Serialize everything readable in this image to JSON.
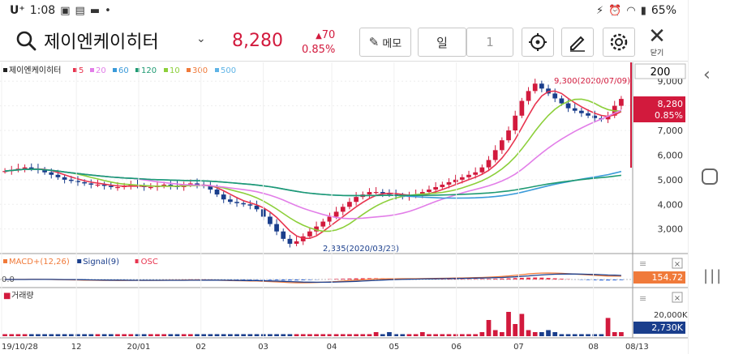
{
  "status": {
    "carrier": "U⁺",
    "time": "1:08",
    "battery": "65%"
  },
  "header": {
    "stock_name": "제이엔케이히터",
    "price": "8,280",
    "change_amount": "70",
    "change_pct": "0.85%",
    "memo_label": "메모",
    "period_label": "일",
    "period_value": "1",
    "close_label": "닫기"
  },
  "colors": {
    "up": "#d21a3d",
    "down": "#1a3e8c",
    "ma5": "#e8344f",
    "ma20": "#e27ee8",
    "ma60": "#3a9ad9",
    "ma120": "#1e9a72",
    "ma10": "#8ccf3a",
    "ma300": "#f07a3a",
    "ma500": "#5fb4e6"
  },
  "chart_data": {
    "type": "candlestick",
    "legend": [
      {
        "name": "제이엔케이히터",
        "color": "#222"
      },
      {
        "name": "5",
        "color": "#e8344f"
      },
      {
        "name": "20",
        "color": "#e27ee8"
      },
      {
        "name": "60",
        "color": "#3a9ad9"
      },
      {
        "name": "120",
        "color": "#1e9a72"
      },
      {
        "name": "10",
        "color": "#8ccf3a"
      },
      {
        "name": "300",
        "color": "#f07a3a"
      },
      {
        "name": "500",
        "color": "#5fb4e6"
      }
    ],
    "y_ticks": [
      "9,000",
      "8,000",
      "7,000",
      "6,000",
      "5,000",
      "4,000",
      "3,000"
    ],
    "y_tick_values": [
      9000,
      8000,
      7000,
      6000,
      5000,
      4000,
      3000
    ],
    "ylim": [
      2200,
      9500
    ],
    "x_ticks": [
      "19/10/28",
      "12",
      "20/01",
      "02",
      "03",
      "04",
      "05",
      "06",
      "07",
      "08",
      "08/13"
    ],
    "count_label": "200",
    "current_price_label": "8,280",
    "current_pct_label": "0.85%",
    "high_annotation": "9,300(2020/07/09)",
    "low_annotation": "2,335(2020/03/23)",
    "close_series": [
      5350,
      5400,
      5450,
      5500,
      5450,
      5400,
      5300,
      5200,
      5100,
      5000,
      4950,
      4900,
      4850,
      4800,
      4800,
      4750,
      4700,
      4700,
      4750,
      4800,
      4750,
      4700,
      4700,
      4750,
      4800,
      4750,
      4700,
      4800,
      4850,
      4800,
      4750,
      4600,
      4400,
      4200,
      4100,
      4050,
      4000,
      3950,
      3800,
      3500,
      3200,
      2900,
      2600,
      2400,
      2500,
      2700,
      2900,
      3100,
      3300,
      3500,
      3700,
      3900,
      4100,
      4300,
      4400,
      4500,
      4500,
      4450,
      4400,
      4350,
      4300,
      4350,
      4400,
      4500,
      4600,
      4700,
      4800,
      4900,
      5000,
      5100,
      5200,
      5300,
      5500,
      5800,
      6200,
      6600,
      7000,
      7600,
      8200,
      8600,
      8900,
      8700,
      8500,
      8300,
      8100,
      7900,
      7800,
      7700,
      7600,
      7500,
      7450,
      7600,
      8000,
      8280
    ],
    "macd": {
      "legend": [
        {
          "name": "MACD+(12,26)",
          "color": "#f07a3a"
        },
        {
          "name": "Signal(9)",
          "color": "#1a3e8c"
        },
        {
          "name": "OSC",
          "color": "#e8344f"
        }
      ],
      "zero_label": "0.0",
      "value_label": "154.72"
    },
    "volume": {
      "legend": "거래량",
      "tick_label": "20,000K",
      "value_label": "2,730K",
      "bars": [
        1,
        1,
        1,
        1,
        1,
        1,
        1,
        1,
        1,
        1,
        1,
        1,
        1,
        1,
        1,
        1,
        1,
        1,
        1,
        1,
        1,
        1,
        1,
        1,
        1,
        1,
        1,
        1,
        1,
        1,
        1,
        1,
        1,
        1,
        1,
        1,
        1,
        1,
        1,
        1,
        1,
        1,
        1,
        1,
        1,
        1,
        1,
        1,
        1,
        1,
        1,
        1,
        1,
        1,
        1,
        1,
        2,
        1,
        2,
        1,
        1,
        1,
        1,
        2,
        1,
        1,
        1,
        1,
        1,
        1,
        1,
        1,
        2,
        8,
        3,
        2,
        12,
        6,
        11,
        3,
        2,
        2,
        3,
        2,
        1,
        1,
        1,
        1,
        1,
        1,
        1,
        9,
        2,
        2
      ]
    }
  }
}
